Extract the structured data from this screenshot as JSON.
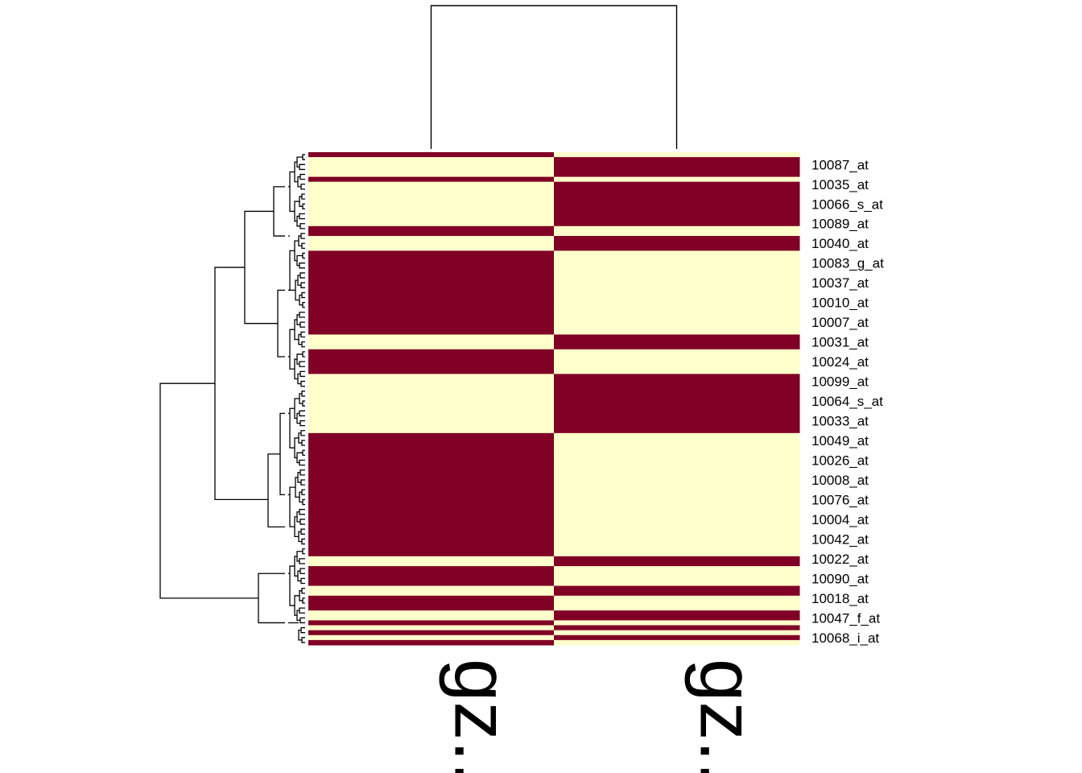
{
  "chart_data": {
    "type": "heatmap",
    "title": "",
    "xlabel": "",
    "ylabel": "",
    "colors": {
      "high": "#800026",
      "low": "#FFFFCC",
      "tree": "#000000",
      "background": "#ffffff"
    },
    "columns": [
      "gz...",
      "gz..."
    ],
    "rows": 100,
    "row_labels": [
      "10087_at",
      "10035_at",
      "10066_s_at",
      "10089_at",
      "10040_at",
      "10083_g_at",
      "10037_at",
      "10010_at",
      "10007_at",
      "10031_at",
      "10024_at",
      "10099_at",
      "10064_s_at",
      "10033_at",
      "10049_at",
      "10026_at",
      "10008_at",
      "10076_at",
      "10004_at",
      "10042_at",
      "10022_at",
      "10090_at",
      "10018_at",
      "10047_f_at",
      "10068_i_at"
    ],
    "cells": [
      "HL",
      "LH",
      "LH",
      "LH",
      "LH",
      "LH",
      "HL",
      "LH",
      "LH",
      "LH",
      "LH",
      "LH",
      "LH",
      "LH",
      "LH",
      "LH",
      "LH",
      "LH",
      "HL",
      "HL",
      "LH",
      "LH",
      "LH",
      "HL",
      "HL",
      "HL",
      "HL",
      "HL",
      "HL",
      "HL",
      "HL",
      "HL",
      "HL",
      "HL",
      "HL",
      "HL",
      "HL",
      "HL",
      "HL",
      "HL",
      "HL",
      "HL",
      "HL",
      "HL",
      "LH",
      "LH",
      "LH",
      "LH",
      "HL",
      "HL",
      "HL",
      "HL",
      "HL",
      "LH",
      "LH",
      "LH",
      "LH",
      "LH",
      "LH",
      "LH",
      "LH",
      "LH",
      "LH",
      "LH",
      "LH",
      "LH",
      "LH",
      "LH",
      "HL",
      "HL",
      "HL",
      "HL",
      "HL",
      "HL",
      "HL",
      "HL",
      "HL",
      "HL",
      "HL",
      "HL",
      "HL",
      "HL",
      "HL",
      "HL",
      "HL",
      "HL",
      "HL",
      "HL",
      "HL",
      "HL",
      "HL",
      "HL",
      "HL",
      "HL",
      "HL",
      "HL",
      "HL",
      "HL",
      "LH",
      "LH"
    ],
    "cells_tail": [
      "HL",
      "HL",
      "HL",
      "HL",
      "HL",
      "LH",
      "LH",
      "HL",
      "HL",
      "HL",
      "HL",
      "LH",
      "LH",
      "HL",
      "HL",
      "LH",
      "HL",
      "LH",
      "HL",
      "HL"
    ],
    "grid": false,
    "legend": "none"
  }
}
